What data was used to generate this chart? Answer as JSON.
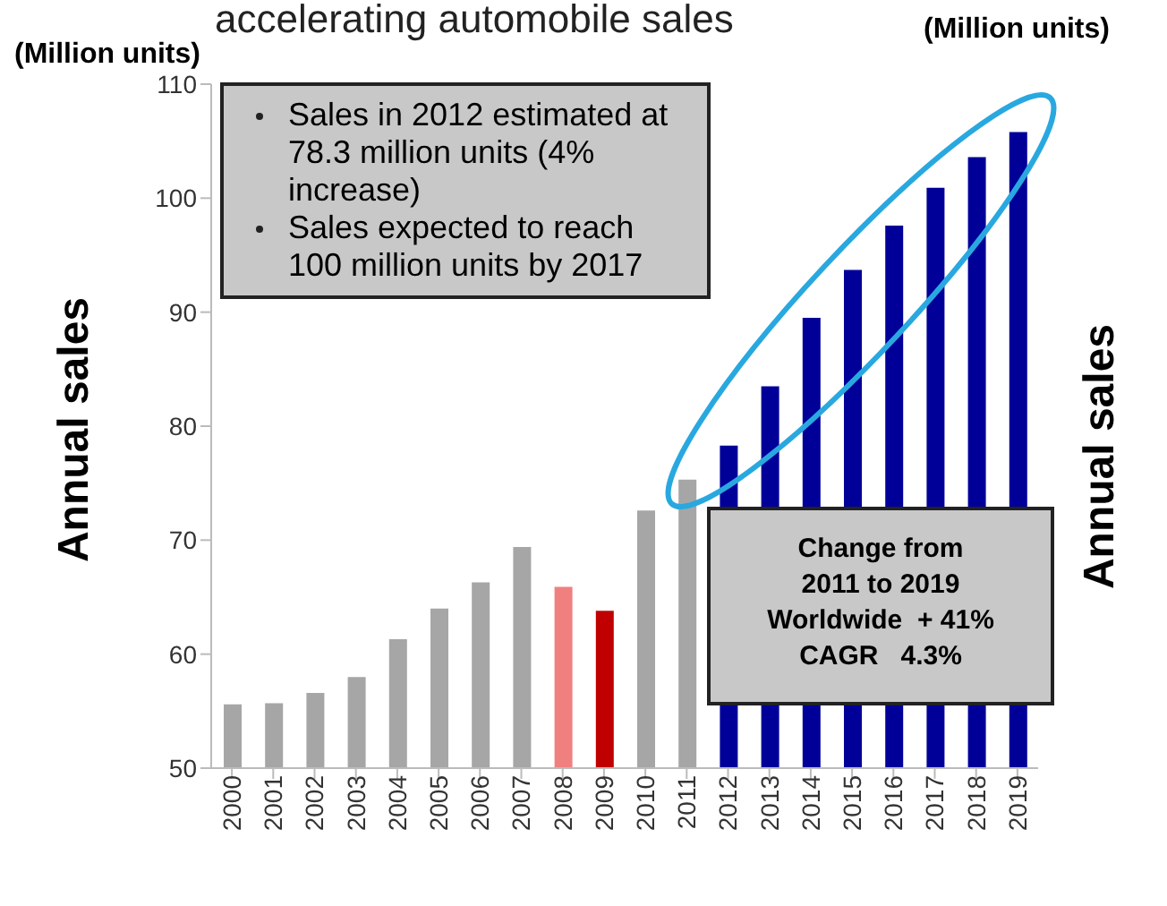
{
  "chart_data": {
    "type": "bar",
    "title": "accelerating automobile sales",
    "ylabel": "Annual sales",
    "y2label": "Annual sales",
    "categories": [
      "2000",
      "2001",
      "2002",
      "2003",
      "2004",
      "2005",
      "2006",
      "2007",
      "2008",
      "2009",
      "2010",
      "2011",
      "2012",
      "2013",
      "2014",
      "2015",
      "2016",
      "2017",
      "2018",
      "2019"
    ],
    "values": [
      55.6,
      55.7,
      56.6,
      58.0,
      61.3,
      64.0,
      66.3,
      69.4,
      65.9,
      63.8,
      72.6,
      75.3,
      78.3,
      83.5,
      89.5,
      93.7,
      97.6,
      100.9,
      103.6,
      105.8
    ],
    "colors": [
      "#a6a6a6",
      "#a6a6a6",
      "#a6a6a6",
      "#a6a6a6",
      "#a6a6a6",
      "#a6a6a6",
      "#a6a6a6",
      "#a6a6a6",
      "#f08080",
      "#c00000",
      "#a6a6a6",
      "#a6a6a6",
      "#000099",
      "#000099",
      "#000099",
      "#000099",
      "#000099",
      "#000099",
      "#000099",
      "#000099"
    ],
    "ylim": [
      50,
      110
    ],
    "yticks": [
      50,
      60,
      70,
      80,
      90,
      100,
      110
    ],
    "grid": false,
    "legend": false,
    "annotations": [
      "(Million units)",
      "(Million units)",
      "Sales in 2012 estimated at 78.3 million units (4% increase)",
      "Sales expected to reach 100 million units by 2017",
      "Change from\n2011 to 2019\nWorldwide  + 41%\nCAGR   4.3%"
    ]
  }
}
